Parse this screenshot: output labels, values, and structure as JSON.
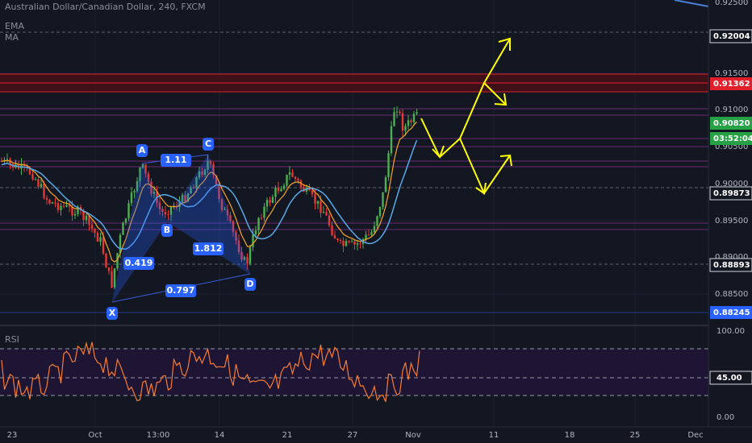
{
  "header": {
    "title": "Australian Dollar/Canadian Dollar, 240, FXCM",
    "indicators": [
      "EMA",
      "MA"
    ]
  },
  "price_axis": {
    "ticks": [
      "0.92500",
      "0.91500",
      "0.91000",
      "0.90500",
      "0.90000",
      "0.89500",
      "0.89000",
      "0.88500"
    ],
    "labels": [
      "0.92004",
      "0.91362",
      "0.90820",
      "03:52:04",
      "0.89873",
      "0.88893",
      "0.88245"
    ]
  },
  "time_axis": {
    "labels": [
      "23",
      "Oct",
      "13:00",
      "14",
      "21",
      "27",
      "Nov",
      "11",
      "18",
      "25",
      "Dec"
    ]
  },
  "pattern": {
    "points": [
      "X",
      "A",
      "B",
      "C",
      "D"
    ],
    "ratios": [
      "1.11",
      "0.419",
      "1.812",
      "0.797"
    ]
  },
  "rsi": {
    "title": "RSI",
    "labels": [
      "100.00",
      "45.00",
      "0.00"
    ]
  }
}
